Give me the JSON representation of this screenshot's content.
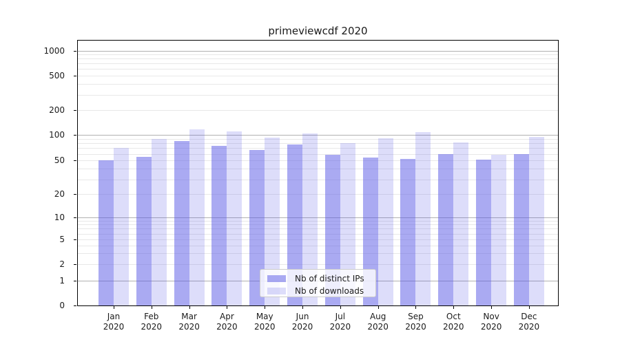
{
  "title": "primeviewcdf 2020",
  "chart_data": {
    "type": "bar",
    "title": "primeviewcdf 2020",
    "categories": [
      "Jan",
      "Feb",
      "Mar",
      "Apr",
      "May",
      "Jun",
      "Jul",
      "Aug",
      "Sep",
      "Oct",
      "Nov",
      "Dec"
    ],
    "category_year": "2020",
    "series": [
      {
        "name": "Nb of distinct IPs",
        "color": "rgba(85,85,230,0.5)",
        "values": [
          50,
          55,
          85,
          75,
          67,
          77,
          59,
          54,
          52,
          60,
          51,
          60
        ]
      },
      {
        "name": "Nb of downloads",
        "color": "rgba(85,85,230,0.2)",
        "values": [
          70,
          90,
          117,
          110,
          93,
          103,
          80,
          91,
          107,
          82,
          59,
          94
        ]
      }
    ],
    "yscale": "symlog",
    "y_ticks": [
      0,
      1,
      2,
      5,
      10,
      20,
      50,
      100,
      200,
      500,
      1000
    ],
    "ylim": [
      0,
      1259
    ],
    "grid": true,
    "legend_position": "lower center"
  },
  "colors": {
    "series_ips": "rgba(85,85,230,0.5)",
    "series_downloads": "rgba(85,85,230,0.2)",
    "grid_major": "#b0b0b0",
    "grid_minor": "#e8e8e8",
    "axis": "#000000",
    "text": "#1a1a1a",
    "legend_border": "#cccccc",
    "legend_background": "rgba(255,255,255,0.8)"
  }
}
